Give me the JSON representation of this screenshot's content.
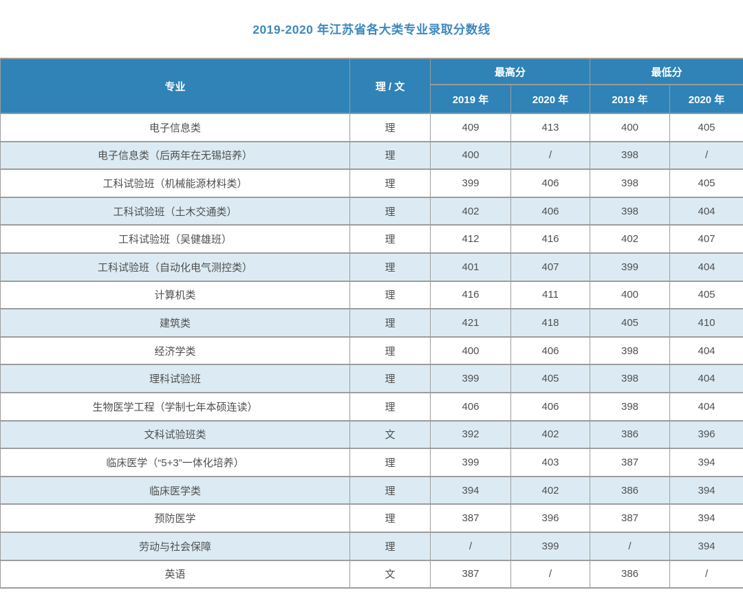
{
  "chart_data": {
    "type": "table",
    "title": "2019-2020 年江苏省各大类专业录取分数线",
    "headers": {
      "major": "专业",
      "track": "理 / 文",
      "max_group": "最高分",
      "min_group": "最低分",
      "year_2019": "2019 年",
      "year_2020": "2020 年"
    },
    "rows": [
      {
        "major": "电子信息类",
        "track": "理",
        "max2019": "409",
        "max2020": "413",
        "min2019": "400",
        "min2020": "405"
      },
      {
        "major": "电子信息类（后两年在无锡培养）",
        "track": "理",
        "max2019": "400",
        "max2020": "/",
        "min2019": "398",
        "min2020": "/"
      },
      {
        "major": "工科试验班（机械能源材料类）",
        "track": "理",
        "max2019": "399",
        "max2020": "406",
        "min2019": "398",
        "min2020": "405"
      },
      {
        "major": "工科试验班（土木交通类）",
        "track": "理",
        "max2019": "402",
        "max2020": "406",
        "min2019": "398",
        "min2020": "404"
      },
      {
        "major": "工科试验班（吴健雄班）",
        "track": "理",
        "max2019": "412",
        "max2020": "416",
        "min2019": "402",
        "min2020": "407"
      },
      {
        "major": "工科试验班（自动化电气测控类）",
        "track": "理",
        "max2019": "401",
        "max2020": "407",
        "min2019": "399",
        "min2020": "404"
      },
      {
        "major": "计算机类",
        "track": "理",
        "max2019": "416",
        "max2020": "411",
        "min2019": "400",
        "min2020": "405"
      },
      {
        "major": "建筑类",
        "track": "理",
        "max2019": "421",
        "max2020": "418",
        "min2019": "405",
        "min2020": "410"
      },
      {
        "major": "经济学类",
        "track": "理",
        "max2019": "400",
        "max2020": "406",
        "min2019": "398",
        "min2020": "404"
      },
      {
        "major": "理科试验班",
        "track": "理",
        "max2019": "399",
        "max2020": "405",
        "min2019": "398",
        "min2020": "404"
      },
      {
        "major": "生物医学工程（学制七年本硕连读）",
        "track": "理",
        "max2019": "406",
        "max2020": "406",
        "min2019": "398",
        "min2020": "404"
      },
      {
        "major": "文科试验班类",
        "track": "文",
        "max2019": "392",
        "max2020": "402",
        "min2019": "386",
        "min2020": "396"
      },
      {
        "major": "临床医学（“5+3”一体化培养）",
        "track": "理",
        "max2019": "399",
        "max2020": "403",
        "min2019": "387",
        "min2020": "394"
      },
      {
        "major": "临床医学类",
        "track": "理",
        "max2019": "394",
        "max2020": "402",
        "min2019": "386",
        "min2020": "394"
      },
      {
        "major": "预防医学",
        "track": "理",
        "max2019": "387",
        "max2020": "396",
        "min2019": "387",
        "min2020": "394"
      },
      {
        "major": "劳动与社会保障",
        "track": "理",
        "max2019": "/",
        "max2020": "399",
        "min2019": "/",
        "min2020": "394"
      },
      {
        "major": "英语",
        "track": "文",
        "max2019": "387",
        "max2020": "/",
        "min2019": "386",
        "min2020": "/"
      }
    ],
    "colors": {
      "header_bg": "#2f83b7",
      "band_row_bg": "#dcebf3",
      "plain_row_bg": "#ffffff",
      "border": "#9c9c9c",
      "title_text": "#3e88bd",
      "header_text": "#ffffff",
      "body_text": "#4f4f4f"
    }
  }
}
